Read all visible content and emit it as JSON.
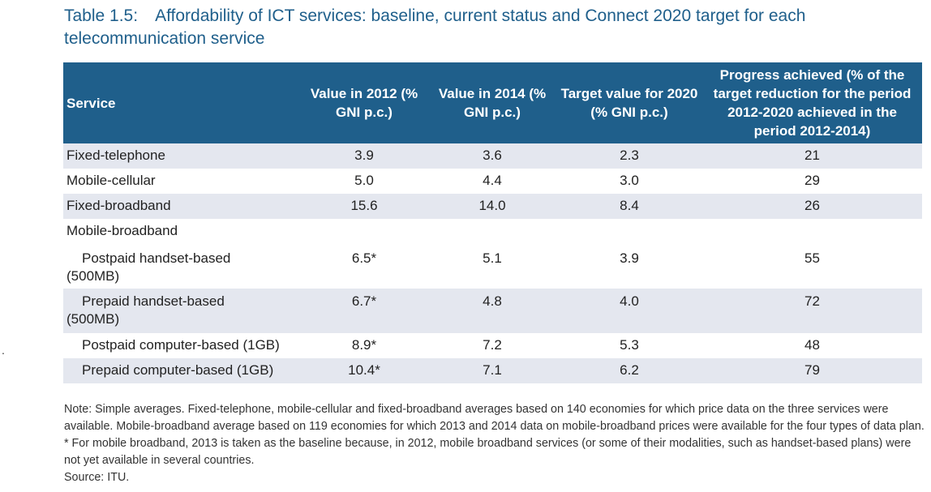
{
  "title": "Table 1.5: Affordability of ICT services: baseline, current status and Connect 2020 target for each telecommunication service",
  "stray_mark": ".",
  "table": {
    "headers": [
      "Service",
      "Value in 2012 (% GNI p.c.)",
      "Value in 2014 (% GNI p.c.)",
      "Target value for 2020 (% GNI p.c.)",
      "Progress achieved (% of the target reduction for the period 2012-2020 achieved in the period 2012-2014)"
    ],
    "rows": [
      {
        "service": "Fixed-telephone",
        "v2012": "3.9",
        "v2014": "3.6",
        "target2020": "2.3",
        "progress": "21"
      },
      {
        "service": "Mobile-cellular",
        "v2012": "5.0",
        "v2014": "4.4",
        "target2020": "3.0",
        "progress": "29"
      },
      {
        "service": "Fixed-broadband",
        "v2012": "15.6",
        "v2014": "14.0",
        "target2020": "8.4",
        "progress": "26"
      },
      {
        "service": "Mobile-broadband",
        "v2012": "",
        "v2014": "",
        "target2020": "",
        "progress": ""
      },
      {
        "service_main": "Postpaid handset-based",
        "service_cont": "(500MB)",
        "v2012": "6.5*",
        "v2014": "5.1",
        "target2020": "3.9",
        "progress": "55"
      },
      {
        "service_main": "Prepaid handset-based",
        "service_cont": "(500MB)",
        "v2012": "6.7*",
        "v2014": "4.8",
        "target2020": "4.0",
        "progress": "72"
      },
      {
        "service": "Postpaid computer-based (1GB)",
        "v2012": "8.9*",
        "v2014": "7.2",
        "target2020": "5.3",
        "progress": "48"
      },
      {
        "service": "Prepaid computer-based (1GB)",
        "v2012": "10.4*",
        "v2014": "7.1",
        "target2020": "6.2",
        "progress": "79"
      }
    ]
  },
  "note": "Note: Simple averages. Fixed-telephone, mobile-cellular and fixed-broadband averages based on 140 economies for which price data on the three services were available. Mobile-broadband average based on 119 economies for which 2013 and 2014 data on mobile-broadband prices were available for the four types of data plan. * For mobile broadband, 2013 is taken as the baseline because, in 2012, mobile broadband services (or some of their modalities, such as handset-based plans) were not yet available in several countries.",
  "source": "Source: ITU."
}
